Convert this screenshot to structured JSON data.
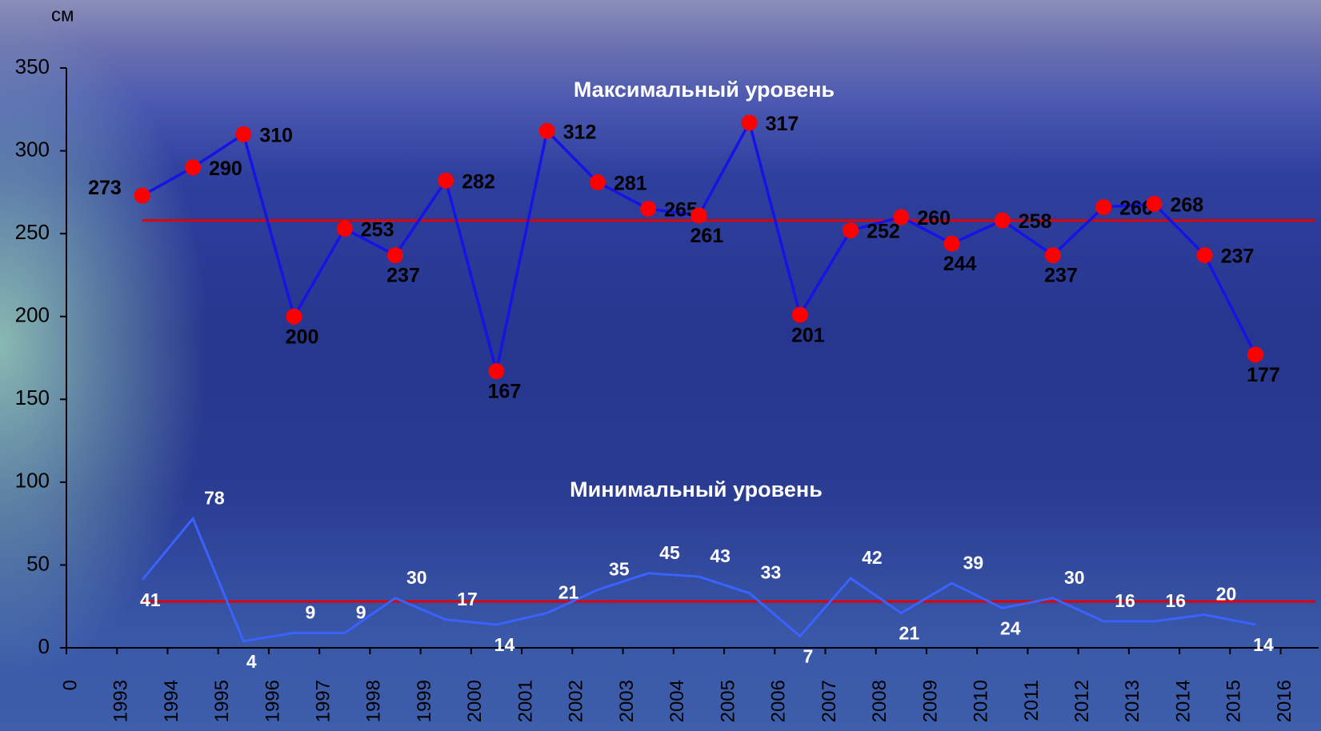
{
  "chart_data": {
    "type": "line",
    "y_unit_label": "см",
    "annotations": [
      "Максимальный уровень",
      "Минимальный уровень"
    ],
    "x": [
      1993.5,
      1994.5,
      1995.5,
      1996.5,
      1997.5,
      1998.5,
      1999.5,
      2000.5,
      2001.5,
      2002.5,
      2003.5,
      2004.5,
      2005.5,
      2006.5,
      2007.5,
      2008.5,
      2009.5,
      2010.5,
      2011.5,
      2012.5,
      2013.5,
      2014.5,
      2015.5
    ],
    "series": [
      {
        "color": "#1414e6",
        "marker_color": "#ff0000",
        "label_color": "#000000",
        "values": [
          273,
          290,
          310,
          200,
          253,
          237,
          282,
          167,
          312,
          281,
          265,
          261,
          317,
          201,
          252,
          260,
          244,
          258,
          237,
          266,
          268,
          237,
          177
        ]
      },
      {
        "color": "#3a62ff",
        "label_color": "#ffffff",
        "values": [
          41,
          78,
          4,
          9,
          9,
          30,
          17,
          14,
          21,
          35,
          45,
          43,
          33,
          7,
          42,
          21,
          39,
          24,
          30,
          16,
          16,
          20,
          14
        ]
      }
    ],
    "reference_lines": [
      {
        "value": 258,
        "color": "#e00000"
      },
      {
        "value": 28,
        "color": "#e00000"
      }
    ],
    "xlim": [
      1992,
      2016.75
    ],
    "xticks": [
      {
        "value": 1992,
        "label": "0"
      },
      1993,
      1994,
      1995,
      1996,
      1997,
      1998,
      1999,
      2000,
      2001,
      2002,
      2003,
      2004,
      2005,
      2006,
      2007,
      2008,
      2009,
      2010,
      2011,
      2012,
      2013,
      2014,
      2015,
      2016
    ],
    "ylim": [
      0,
      350
    ],
    "yticks": [
      0,
      50,
      100,
      150,
      200,
      250,
      300,
      350
    ]
  }
}
